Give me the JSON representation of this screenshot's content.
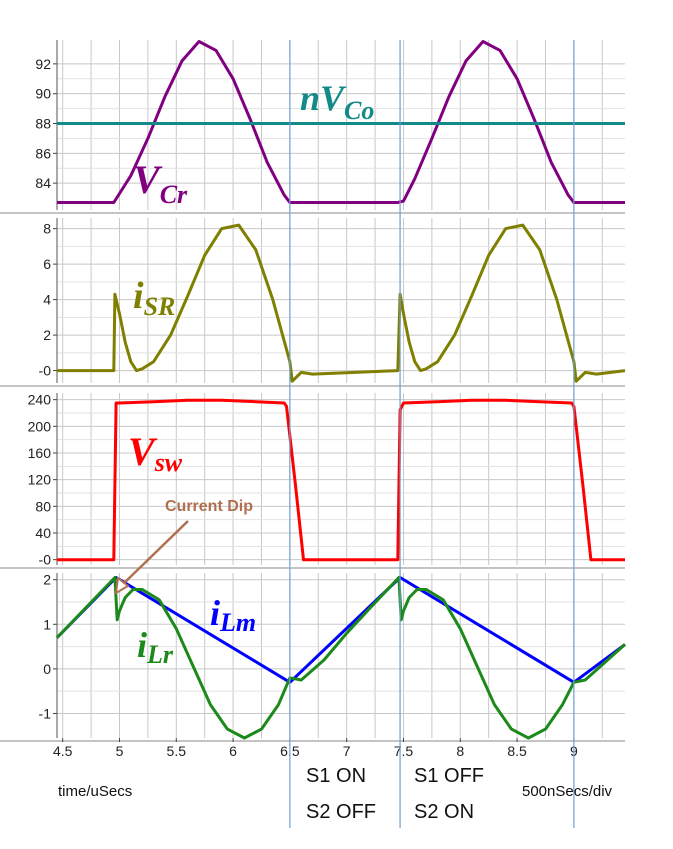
{
  "chart_data": [
    {
      "type": "line",
      "panel": "Vcr",
      "xlim": [
        4.45,
        9.45
      ],
      "ylim": [
        82.2,
        93.6
      ],
      "yticks": [
        92,
        90,
        88,
        86,
        84
      ],
      "ytick_labels": [
        "92",
        "90",
        "88",
        "86",
        "84"
      ],
      "series": [
        {
          "label_main": "V",
          "label_sub": "Cr",
          "color": "#800080",
          "x": [
            4.45,
            4.95,
            5.1,
            5.25,
            5.4,
            5.55,
            5.7,
            5.85,
            6.0,
            6.15,
            6.3,
            6.45,
            6.5,
            7.45,
            7.5,
            7.6,
            7.75,
            7.9,
            8.05,
            8.2,
            8.35,
            8.5,
            8.65,
            8.8,
            8.95,
            9.0,
            9.45
          ],
          "y": [
            82.7,
            82.7,
            84.5,
            87.0,
            89.8,
            92.2,
            93.5,
            92.9,
            91.0,
            88.3,
            85.4,
            83.2,
            82.7,
            82.7,
            82.8,
            84.3,
            87.0,
            89.8,
            92.2,
            93.5,
            92.9,
            91.0,
            88.3,
            85.4,
            83.2,
            82.7,
            82.7
          ]
        },
        {
          "label_main": "nV",
          "label_sub": "Co",
          "color": "#138a8a",
          "x": [
            4.45,
            9.45
          ],
          "y": [
            88.0,
            88.0
          ]
        }
      ]
    },
    {
      "type": "line",
      "panel": "iSR",
      "xlim": [
        4.45,
        9.45
      ],
      "ylim": [
        -0.7,
        8.6
      ],
      "yticks": [
        8,
        6,
        4,
        2,
        0
      ],
      "ytick_labels": [
        "8",
        "6",
        "4",
        "2",
        "-0"
      ],
      "series": [
        {
          "label_main": "i",
          "label_sub": "SR",
          "color": "#7f7f00",
          "x": [
            4.45,
            4.95,
            4.96,
            5.0,
            5.05,
            5.1,
            5.15,
            5.2,
            5.3,
            5.45,
            5.6,
            5.75,
            5.9,
            6.05,
            6.2,
            6.35,
            6.5,
            6.52,
            6.6,
            6.7,
            7.45,
            7.47,
            7.5,
            7.55,
            7.6,
            7.65,
            7.7,
            7.8,
            7.95,
            8.1,
            8.25,
            8.4,
            8.55,
            8.7,
            8.85,
            9.0,
            9.02,
            9.1,
            9.2,
            9.45
          ],
          "y": [
            0.0,
            0.0,
            4.3,
            3.2,
            1.6,
            0.5,
            0.0,
            0.1,
            0.5,
            2.0,
            4.2,
            6.5,
            8.0,
            8.2,
            6.8,
            4.0,
            0.5,
            -0.6,
            -0.1,
            -0.2,
            0.0,
            4.3,
            3.2,
            1.6,
            0.5,
            0.0,
            0.1,
            0.5,
            2.0,
            4.2,
            6.5,
            8.0,
            8.2,
            6.8,
            4.0,
            0.5,
            -0.6,
            -0.1,
            -0.2,
            0.0
          ]
        }
      ]
    },
    {
      "type": "line",
      "panel": "Vsw",
      "xlim": [
        4.45,
        9.45
      ],
      "ylim": [
        -8,
        250
      ],
      "yticks": [
        240,
        200,
        160,
        120,
        80,
        40,
        0
      ],
      "ytick_labels": [
        "240",
        "200",
        "160",
        "120",
        "80",
        "40",
        "-0"
      ],
      "series": [
        {
          "label_main": "V",
          "label_sub": "sw",
          "color": "#ff0000",
          "x": [
            4.45,
            4.95,
            4.97,
            5.0,
            5.3,
            5.6,
            5.9,
            6.2,
            6.45,
            6.47,
            6.55,
            6.62,
            7.45,
            7.47,
            7.5,
            7.8,
            8.1,
            8.4,
            8.7,
            8.98,
            9.0,
            9.08,
            9.15,
            9.45
          ],
          "y": [
            0,
            0,
            235,
            235,
            237,
            239,
            239,
            237,
            235,
            230,
            110,
            0,
            0,
            225,
            235,
            237,
            239,
            239,
            237,
            235,
            230,
            110,
            0,
            0
          ]
        }
      ]
    },
    {
      "type": "line",
      "panel": "iLr_iLm",
      "xlim": [
        4.45,
        9.45
      ],
      "ylim": [
        -1.55,
        2.15
      ],
      "yticks": [
        2,
        1,
        0,
        -1
      ],
      "ytick_labels": [
        "2",
        "1",
        "0",
        "-1"
      ],
      "xticks": [
        4.5,
        5,
        5.5,
        6,
        6.5,
        7,
        7.5,
        8,
        8.5,
        9
      ],
      "xtick_labels": [
        "4.5",
        "5",
        "5.5",
        "6",
        "6.5",
        "7",
        "7.5",
        "8",
        "8.5",
        "9"
      ],
      "series": [
        {
          "label_main": "i",
          "label_sub": "Lm",
          "color": "#0000ff",
          "x": [
            4.45,
            4.97,
            6.5,
            7.47,
            9.0,
            9.45
          ],
          "y": [
            0.7,
            2.05,
            -0.3,
            2.05,
            -0.3,
            0.55
          ]
        },
        {
          "label_main": "i",
          "label_sub": "Lr",
          "color": "#1b8a1b",
          "x": [
            4.45,
            4.96,
            4.98,
            5.0,
            5.05,
            5.12,
            5.2,
            5.35,
            5.5,
            5.65,
            5.8,
            5.95,
            6.1,
            6.25,
            6.4,
            6.5,
            6.6,
            6.8,
            7.0,
            7.2,
            7.46,
            7.48,
            7.5,
            7.55,
            7.62,
            7.7,
            7.85,
            8.0,
            8.15,
            8.3,
            8.45,
            8.6,
            8.75,
            8.9,
            9.0,
            9.1,
            9.45
          ],
          "y": [
            0.7,
            2.05,
            1.1,
            1.3,
            1.6,
            1.78,
            1.78,
            1.55,
            0.9,
            0.05,
            -0.8,
            -1.35,
            -1.55,
            -1.35,
            -0.8,
            -0.2,
            -0.25,
            0.2,
            0.8,
            1.35,
            2.05,
            1.1,
            1.3,
            1.6,
            1.78,
            1.78,
            1.55,
            0.9,
            0.05,
            -0.8,
            -1.35,
            -1.55,
            -1.35,
            -0.8,
            -0.3,
            -0.25,
            0.55
          ]
        }
      ]
    }
  ],
  "annotations": {
    "current_dip": "Current Dip",
    "state_left_1": "S1 ON",
    "state_left_2": "S2 OFF",
    "state_right_1": "S1 OFF",
    "state_right_2": "S2 ON",
    "xlabel": "time/uSecs",
    "timescale": "500nSecs/div"
  },
  "markers_x": [
    6.5,
    7.47,
    9.0
  ],
  "colors": {
    "grid": "#c8c8c8",
    "marker": "#6f9fd0",
    "dip_arrow": "#b07050"
  }
}
